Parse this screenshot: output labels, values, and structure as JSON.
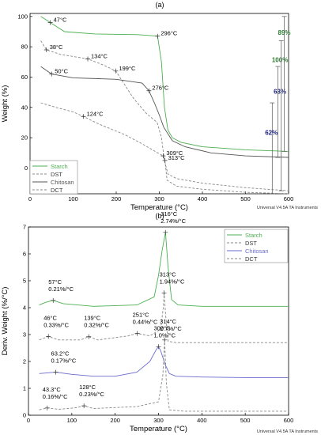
{
  "figure": {
    "watermark_a": "Universal V4.5A TA Instruments",
    "watermark_b": "Universal V4.5A TA Instruments"
  },
  "chart_data": [
    {
      "panel_label": "(a)",
      "type": "line",
      "xlabel": "Temperature (°C)",
      "ylabel": "Weight (%)",
      "xlim": [
        0,
        600
      ],
      "ylim": [
        -17,
        102
      ],
      "x_ticks": [
        0,
        100,
        200,
        300,
        400,
        500,
        600
      ],
      "y_ticks": [
        0,
        20,
        40,
        60,
        80,
        100
      ],
      "grid": false,
      "legend_position": "bottom-left",
      "series": [
        {
          "name": "Starch",
          "color": "#4caf50",
          "dash": "solid",
          "x": [
            25,
            47,
            80,
            150,
            250,
            296,
            305,
            312,
            320,
            330,
            350,
            400,
            500,
            600
          ],
          "y": [
            100,
            96,
            90,
            88.5,
            88,
            87,
            70,
            40,
            25,
            20,
            17,
            14,
            12,
            11
          ]
        },
        {
          "name": "DST",
          "color": "#888888",
          "dash": "dashed",
          "x": [
            25,
            38,
            70,
            134,
            170,
            199,
            240,
            270,
            295,
            305,
            312,
            320,
            340,
            400,
            500,
            600
          ],
          "y": [
            84,
            78,
            75,
            72,
            68,
            64,
            46,
            36,
            30,
            20,
            5,
            -4,
            -7,
            -10,
            -13,
            -15
          ]
        },
        {
          "name": "Chitosan",
          "color": "#555555",
          "dash": "solid",
          "x": [
            25,
            50,
            100,
            200,
            260,
            276,
            290,
            300,
            310,
            330,
            360,
            420,
            500,
            600
          ],
          "y": [
            67,
            62,
            59.5,
            58.5,
            56,
            51,
            42,
            35,
            27,
            18,
            14,
            10,
            8,
            7
          ]
        },
        {
          "name": "DCT",
          "color": "#888888",
          "dash": "dashed",
          "x": [
            25,
            60,
            100,
            124,
            160,
            220,
            260,
            290,
            309,
            313,
            318,
            340,
            400,
            500,
            600
          ],
          "y": [
            43,
            40,
            37,
            34,
            29,
            22,
            16,
            11,
            8,
            5,
            -8,
            -12,
            -14,
            -16,
            -17
          ]
        }
      ],
      "point_labels": [
        {
          "text": "47°C",
          "x": 47,
          "y": 96,
          "color": "#000000"
        },
        {
          "text": "38°C",
          "x": 38,
          "y": 78,
          "color": "#000000"
        },
        {
          "text": "134°C",
          "x": 134,
          "y": 72,
          "color": "#000000"
        },
        {
          "text": "50°C",
          "x": 50,
          "y": 62,
          "color": "#000000"
        },
        {
          "text": "199°C",
          "x": 199,
          "y": 64,
          "color": "#000000"
        },
        {
          "text": "296°C",
          "x": 296,
          "y": 87,
          "color": "#000000"
        },
        {
          "text": "276°C",
          "x": 276,
          "y": 51,
          "color": "#000000"
        },
        {
          "text": "124°C",
          "x": 124,
          "y": 34,
          "color": "#000000"
        },
        {
          "text": "309°C",
          "x": 309,
          "y": 8,
          "color": "#000000"
        },
        {
          "text": "313°C",
          "x": 313,
          "y": 5,
          "color": "#000000"
        }
      ],
      "loss_labels": [
        {
          "text": "89%",
          "x": 590,
          "y": 88,
          "color": "#2e7d32"
        },
        {
          "text": "100%",
          "x": 580,
          "y": 70,
          "color": "#2e7d32"
        },
        {
          "text": "63%",
          "x": 580,
          "y": 49,
          "color": "#1a237e"
        },
        {
          "text": "62%",
          "x": 560,
          "y": 22,
          "color": "#1a237e"
        }
      ]
    },
    {
      "panel_label": "(b)",
      "type": "line",
      "xlabel": "Temperature (°C)",
      "ylabel": "Deriv. Weight (%/°C)",
      "xlim": [
        0,
        600
      ],
      "ylim": [
        0,
        7
      ],
      "x_ticks": [
        0,
        100,
        200,
        300,
        400,
        500,
        600
      ],
      "y_ticks": [
        0,
        1,
        2,
        3,
        4,
        5,
        6,
        7
      ],
      "grid": false,
      "legend_position": "top-right",
      "series": [
        {
          "name": "Starch",
          "color": "#4caf50",
          "dash": "solid",
          "x": [
            25,
            40,
            57,
            80,
            150,
            250,
            290,
            300,
            308,
            316,
            322,
            330,
            345,
            400,
            500,
            600
          ],
          "y": [
            4.1,
            4.2,
            4.27,
            4.15,
            4.05,
            4.1,
            4.4,
            5.2,
            6.1,
            6.8,
            5.5,
            4.3,
            4.1,
            4.05,
            4.05,
            4.05
          ]
        },
        {
          "name": "DST",
          "color": "#888888",
          "dash": "dashed",
          "x": [
            25,
            46,
            70,
            120,
            139,
            160,
            230,
            251,
            280,
            305,
            311,
            313,
            316,
            322,
            340,
            400,
            500,
            600
          ],
          "y": [
            2.8,
            2.93,
            2.8,
            2.8,
            2.92,
            2.8,
            2.95,
            3.04,
            2.95,
            3.2,
            4.0,
            4.55,
            3.8,
            2.75,
            2.7,
            2.7,
            2.7,
            2.7
          ]
        },
        {
          "name": "Chitosan",
          "color": "#6a6acd",
          "dash": "solid",
          "x": [
            25,
            63,
            100,
            150,
            200,
            250,
            280,
            295,
            300,
            305,
            315,
            325,
            340,
            400,
            500,
            600
          ],
          "y": [
            1.55,
            1.6,
            1.52,
            1.45,
            1.45,
            1.6,
            2.0,
            2.45,
            2.55,
            2.4,
            1.9,
            1.55,
            1.45,
            1.42,
            1.4,
            1.4
          ]
        },
        {
          "name": "DCT",
          "color": "#888888",
          "dash": "dashed",
          "x": [
            25,
            43.3,
            70,
            110,
            128,
            150,
            250,
            300,
            310,
            314,
            318,
            325,
            360,
            400,
            500,
            600
          ],
          "y": [
            0.2,
            0.27,
            0.22,
            0.28,
            0.35,
            0.25,
            0.32,
            0.5,
            1.5,
            2.8,
            1.2,
            0.2,
            0.15,
            0.15,
            0.15,
            0.15
          ]
        }
      ],
      "point_labels": [
        {
          "lines": [
            "316°C",
            "2.74%/°C"
          ],
          "x": 316,
          "y": 6.8,
          "color": "#000000"
        },
        {
          "lines": [
            "313°C",
            "1.94%/°C"
          ],
          "x": 313,
          "y": 4.55,
          "color": "#000000"
        },
        {
          "lines": [
            "57°C",
            "0.21%/°C"
          ],
          "x": 57,
          "y": 4.27,
          "color": "#000000"
        },
        {
          "lines": [
            "46°C",
            "0.33%/°C"
          ],
          "x": 46,
          "y": 2.93,
          "color": "#000000"
        },
        {
          "lines": [
            "139°C",
            "0.32%/°C"
          ],
          "x": 139,
          "y": 2.92,
          "color": "#000000"
        },
        {
          "lines": [
            "251°C",
            "0.44%/°C"
          ],
          "x": 251,
          "y": 3.04,
          "color": "#000000"
        },
        {
          "lines": [
            "300°C",
            "1.0%/°C"
          ],
          "x": 300,
          "y": 2.55,
          "color": "#000000"
        },
        {
          "lines": [
            "314°C",
            "2.7%/°C"
          ],
          "x": 314,
          "y": 2.8,
          "color": "#000000"
        },
        {
          "lines": [
            "63.2°C",
            "0.17%/°C"
          ],
          "x": 63,
          "y": 1.6,
          "color": "#000000"
        },
        {
          "lines": [
            "43.3°C",
            "0.16%/°C"
          ],
          "x": 43.3,
          "y": 0.27,
          "color": "#000000"
        },
        {
          "lines": [
            "128°C",
            "0.23%/°C"
          ],
          "x": 128,
          "y": 0.35,
          "color": "#000000"
        }
      ]
    }
  ]
}
